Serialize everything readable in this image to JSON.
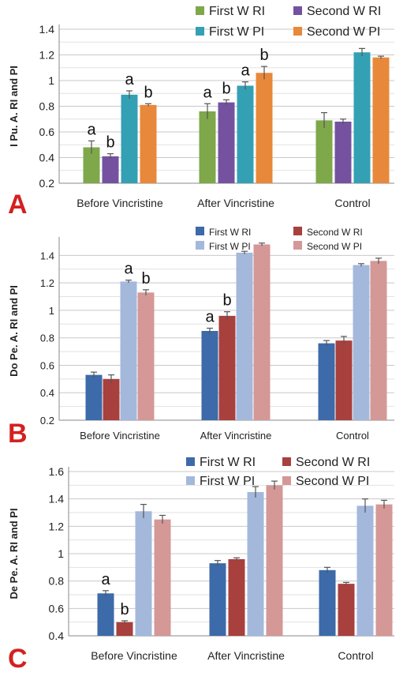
{
  "chart_data": [
    {
      "type": "bar",
      "panel_letter": "A",
      "ylabel": "I Pu. A. RI  and PI",
      "ylim": [
        0.2,
        1.4
      ],
      "yticks": [
        "0.2",
        "0.4",
        "0.6",
        "0.8",
        "1",
        "1.2",
        "1.4"
      ],
      "grid": true,
      "legend_position": "top-right",
      "categories": [
        "Before Vincristine",
        "After Vincristine",
        "Control"
      ],
      "series": [
        {
          "name": "First W RI",
          "color": "#7ea84a",
          "values": [
            0.48,
            0.76,
            0.69
          ],
          "errors": [
            0.05,
            0.06,
            0.06
          ]
        },
        {
          "name": "Second W RI",
          "color": "#7452a0",
          "values": [
            0.41,
            0.83,
            0.68
          ],
          "errors": [
            0.02,
            0.02,
            0.02
          ]
        },
        {
          "name": "First W PI",
          "color": "#34a0b4",
          "values": [
            0.89,
            0.96,
            1.22
          ],
          "errors": [
            0.03,
            0.03,
            0.03
          ]
        },
        {
          "name": "Second W PI",
          "color": "#e8883a",
          "values": [
            0.81,
            1.06,
            1.18
          ],
          "errors": [
            0.01,
            0.05,
            0.01
          ]
        }
      ],
      "annotations": [
        {
          "category": 0,
          "series": 0,
          "text": "a"
        },
        {
          "category": 0,
          "series": 1,
          "text": "b"
        },
        {
          "category": 0,
          "series": 2,
          "text": "a"
        },
        {
          "category": 0,
          "series": 3,
          "text": "b"
        },
        {
          "category": 1,
          "series": 0,
          "text": "a"
        },
        {
          "category": 1,
          "series": 1,
          "text": "b"
        },
        {
          "category": 1,
          "series": 2,
          "text": "a"
        },
        {
          "category": 1,
          "series": 3,
          "text": "b"
        }
      ]
    },
    {
      "type": "bar",
      "panel_letter": "B",
      "ylabel": "Do Pe. A. RI  and PI",
      "ylim": [
        0.2,
        1.5
      ],
      "yticks": [
        "0.2",
        "0.4",
        "0.6",
        "0.8",
        "1",
        "1.2",
        "1.4"
      ],
      "grid": true,
      "legend_position": "top-right",
      "categories": [
        "Before Vincristine",
        "After Vincristine",
        "Control"
      ],
      "series": [
        {
          "name": "First W RI",
          "color": "#3d6aa8",
          "values": [
            0.53,
            0.85,
            0.76
          ],
          "errors": [
            0.02,
            0.02,
            0.02
          ]
        },
        {
          "name": "Second W RI",
          "color": "#a8403e",
          "values": [
            0.5,
            0.96,
            0.78
          ],
          "errors": [
            0.03,
            0.03,
            0.03
          ]
        },
        {
          "name": "First W PI",
          "color": "#a4b8dc",
          "values": [
            1.21,
            1.42,
            1.33
          ],
          "errors": [
            0.01,
            0.01,
            0.01
          ]
        },
        {
          "name": "Second W PI",
          "color": "#d49896",
          "values": [
            1.13,
            1.48,
            1.36
          ],
          "errors": [
            0.02,
            0.01,
            0.02
          ]
        }
      ],
      "annotations": [
        {
          "category": 0,
          "series": 2,
          "text": "a"
        },
        {
          "category": 0,
          "series": 3,
          "text": "b"
        },
        {
          "category": 1,
          "series": 0,
          "text": "a"
        },
        {
          "category": 1,
          "series": 1,
          "text": "b"
        }
      ]
    },
    {
      "type": "bar",
      "panel_letter": "C",
      "ylabel": "De Pe. A. RI  and PI",
      "ylim": [
        0.4,
        1.6
      ],
      "yticks": [
        "0.4",
        "0.6",
        "0.8",
        "1",
        "1.2",
        "1.4",
        "1.6"
      ],
      "grid": true,
      "legend_position": "top-right",
      "categories": [
        "Before Vincristine",
        "After Vincristine",
        "Control"
      ],
      "series": [
        {
          "name": "First W RI",
          "color": "#3d6aa8",
          "values": [
            0.71,
            0.93,
            0.88
          ],
          "errors": [
            0.02,
            0.02,
            0.02
          ]
        },
        {
          "name": "Second W RI",
          "color": "#a8403e",
          "values": [
            0.5,
            0.96,
            0.78
          ],
          "errors": [
            0.01,
            0.01,
            0.01
          ]
        },
        {
          "name": "First W PI",
          "color": "#a4b8dc",
          "values": [
            1.31,
            1.45,
            1.35
          ],
          "errors": [
            0.05,
            0.04,
            0.05
          ]
        },
        {
          "name": "Second W PI",
          "color": "#d49896",
          "values": [
            1.25,
            1.5,
            1.36
          ],
          "errors": [
            0.03,
            0.03,
            0.03
          ]
        }
      ],
      "annotations": [
        {
          "category": 0,
          "series": 0,
          "text": "a"
        },
        {
          "category": 0,
          "series": 1,
          "text": "b"
        }
      ]
    }
  ]
}
